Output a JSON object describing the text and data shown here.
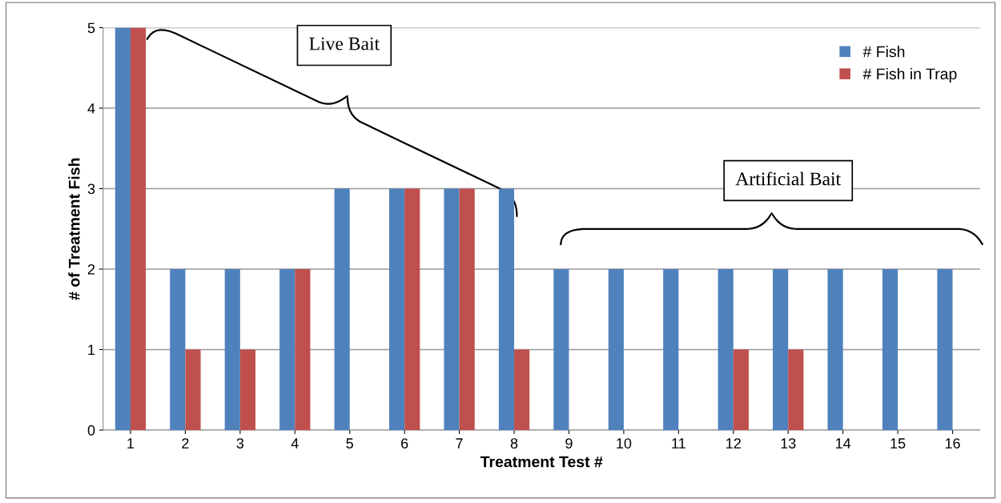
{
  "chart_data": {
    "type": "bar",
    "xlabel": "Treatment Test #",
    "ylabel": "# of Treatment Fish",
    "categories": [
      "1",
      "2",
      "3",
      "4",
      "5",
      "6",
      "7",
      "8",
      "9",
      "10",
      "11",
      "12",
      "13",
      "14",
      "15",
      "16"
    ],
    "series": [
      {
        "name": "# Fish",
        "color": "#4f81bd",
        "values": [
          5,
          2,
          2,
          2,
          3,
          3,
          3,
          3,
          2,
          2,
          2,
          2,
          2,
          2,
          2,
          2
        ]
      },
      {
        "name": "# Fish in Trap",
        "color": "#c0504d",
        "values": [
          5,
          1,
          1,
          2,
          0,
          3,
          3,
          1,
          0,
          0,
          0,
          1,
          1,
          0,
          0,
          0
        ]
      }
    ],
    "annotations": [
      "Live Bait",
      "Artificial Bait"
    ],
    "ylim": [
      0,
      5
    ],
    "yticks": [
      0,
      1,
      2,
      3,
      4,
      5
    ],
    "grid": "y",
    "legend": "top right"
  }
}
